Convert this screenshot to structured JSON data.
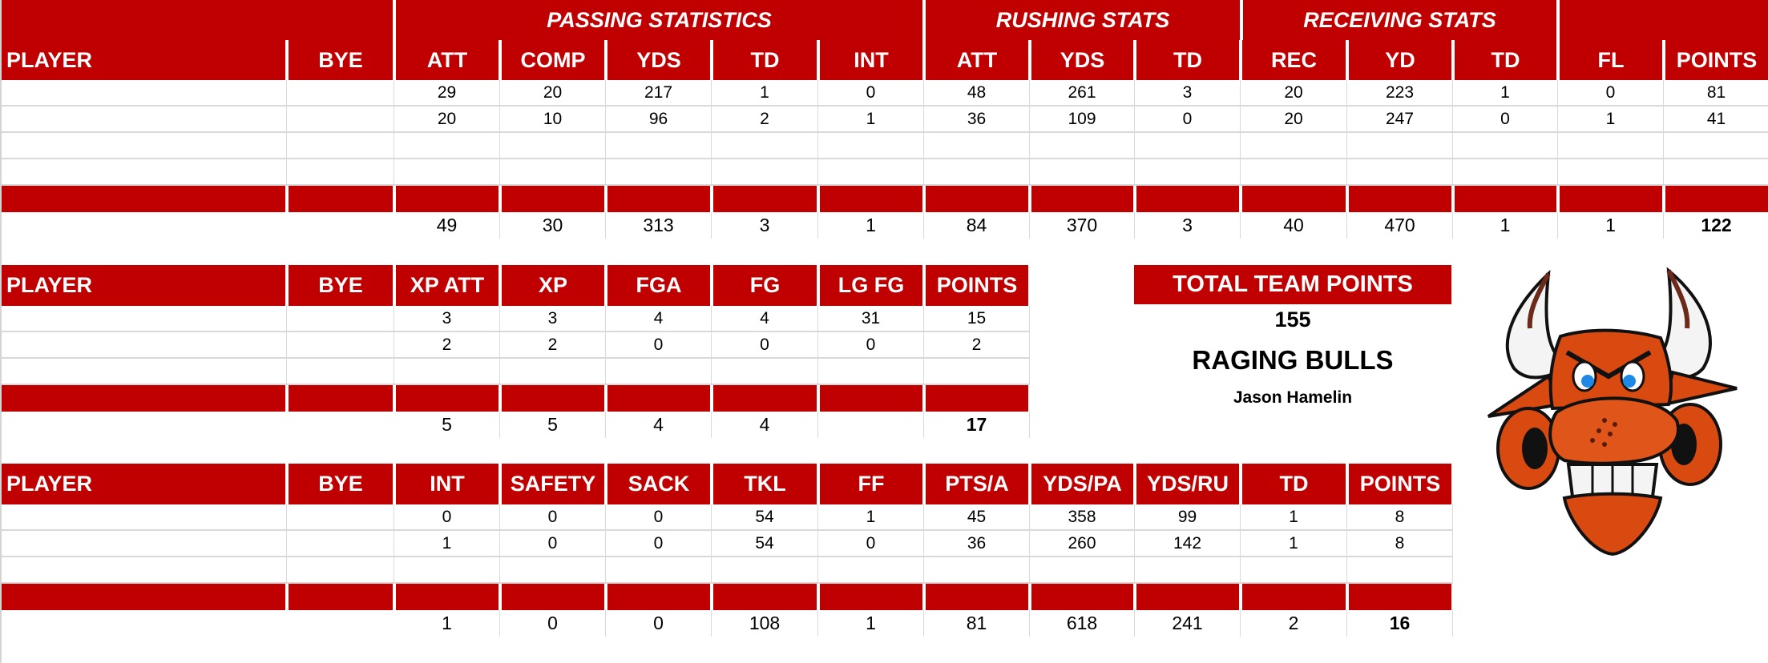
{
  "colors": {
    "header_red": "#c00000",
    "grid": "#d9d9d9",
    "text": "#000000",
    "header_text": "#ffffff"
  },
  "offense": {
    "groups": [
      "PASSING STATISTICS",
      "RUSHING STATS",
      "RECEIVING STATS"
    ],
    "columns": [
      "PLAYER",
      "BYE",
      "ATT",
      "COMP",
      "YDS",
      "TD",
      "INT",
      "ATT",
      "YDS",
      "TD",
      "REC",
      "YD",
      "TD",
      "FL",
      "POINTS"
    ],
    "rows": [
      [
        "",
        "",
        "29",
        "20",
        "217",
        "1",
        "0",
        "48",
        "261",
        "3",
        "20",
        "223",
        "1",
        "0",
        "81"
      ],
      [
        "",
        "",
        "20",
        "10",
        "96",
        "2",
        "1",
        "36",
        "109",
        "0",
        "20",
        "247",
        "0",
        "1",
        "41"
      ],
      [
        "",
        "",
        "",
        "",
        "",
        "",
        "",
        "",
        "",
        "",
        "",
        "",
        "",
        "",
        ""
      ],
      [
        "",
        "",
        "",
        "",
        "",
        "",
        "",
        "",
        "",
        "",
        "",
        "",
        "",
        "",
        ""
      ]
    ],
    "totals": [
      "",
      "",
      "49",
      "30",
      "313",
      "3",
      "1",
      "84",
      "370",
      "3",
      "40",
      "470",
      "1",
      "1",
      "122"
    ]
  },
  "kicker": {
    "columns": [
      "PLAYER",
      "BYE",
      "XP ATT",
      "XP",
      "FGA",
      "FG",
      "LG FG",
      "POINTS"
    ],
    "rows": [
      [
        "",
        "",
        "3",
        "3",
        "4",
        "4",
        "31",
        "15"
      ],
      [
        "",
        "",
        "2",
        "2",
        "0",
        "0",
        "0",
        "2"
      ],
      [
        "",
        "",
        "",
        "",
        "",
        "",
        "",
        ""
      ]
    ],
    "totals": [
      "",
      "",
      "5",
      "5",
      "4",
      "4",
      "",
      "17"
    ]
  },
  "defense": {
    "columns": [
      "PLAYER",
      "BYE",
      "INT",
      "SAFETY",
      "SACK",
      "TKL",
      "FF",
      "PTS/A",
      "YDS/PA",
      "YDS/RU",
      "TD",
      "POINTS"
    ],
    "rows": [
      [
        "",
        "",
        "0",
        "0",
        "0",
        "54",
        "1",
        "45",
        "358",
        "99",
        "1",
        "8"
      ],
      [
        "",
        "",
        "1",
        "0",
        "0",
        "54",
        "0",
        "36",
        "260",
        "142",
        "1",
        "8"
      ],
      [
        "",
        "",
        "",
        "",
        "",
        "",
        "",
        "",
        "",
        "",
        "",
        ""
      ]
    ],
    "totals": [
      "",
      "",
      "1",
      "0",
      "0",
      "108",
      "1",
      "81",
      "618",
      "241",
      "2",
      "16"
    ]
  },
  "team": {
    "total_points_label": "TOTAL TEAM POINTS",
    "total_points": "155",
    "name": "RAGING BULLS",
    "owner": "Jason Hamelin",
    "logo_icon": "raging-bull-logo-icon"
  }
}
